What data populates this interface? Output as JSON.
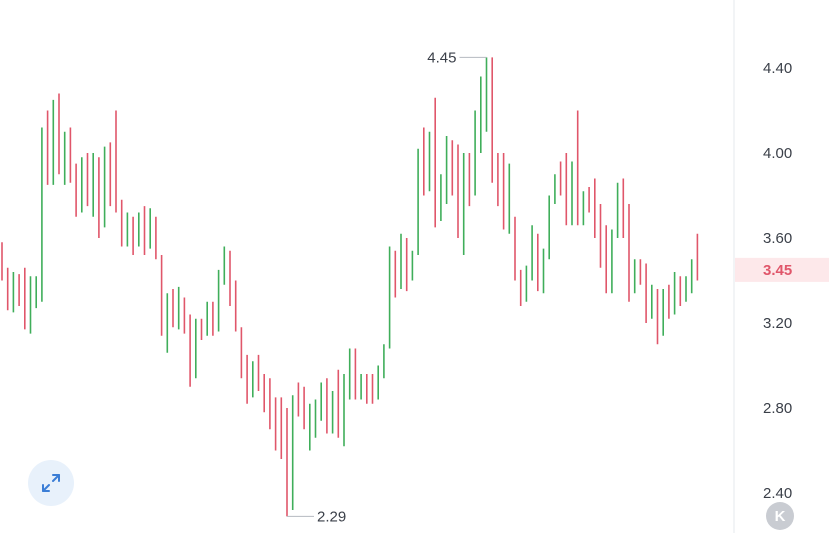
{
  "chart_data": {
    "type": "ohlc",
    "title": "",
    "xlabel": "",
    "ylabel": "",
    "ylim": [
      2.29,
      4.51
    ],
    "yticks": [
      4.4,
      4.0,
      3.6,
      3.2,
      2.8,
      2.4
    ],
    "ytick_labels": [
      "4.40",
      "4.00",
      "3.60",
      "3.20",
      "2.80",
      "2.40"
    ],
    "high_marker": {
      "value": 4.45,
      "label": "4.45"
    },
    "low_marker": {
      "value": 2.29,
      "label": "2.29"
    },
    "last_price": {
      "value": 3.45,
      "label": "3.45"
    },
    "grid": false,
    "up_color": "#3fae5a",
    "down_color": "#e0566a",
    "bars": [
      [
        3.58,
        3.58,
        3.4,
        3.4
      ],
      [
        3.4,
        3.46,
        3.26,
        3.3
      ],
      [
        3.3,
        3.44,
        3.25,
        3.4
      ],
      [
        3.4,
        3.43,
        3.28,
        3.3
      ],
      [
        3.3,
        3.46,
        3.17,
        3.22
      ],
      [
        3.22,
        3.42,
        3.15,
        3.4
      ],
      [
        3.3,
        3.42,
        3.27,
        3.38
      ],
      [
        3.3,
        4.12,
        3.3,
        4.1
      ],
      [
        4.1,
        4.2,
        3.85,
        3.88
      ],
      [
        3.88,
        4.25,
        3.85,
        4.22
      ],
      [
        4.22,
        4.28,
        3.9,
        3.92
      ],
      [
        3.92,
        4.1,
        3.85,
        4.0
      ],
      [
        4.0,
        4.12,
        3.86,
        3.88
      ],
      [
        3.88,
        3.95,
        3.7,
        3.72
      ],
      [
        3.72,
        3.98,
        3.72,
        3.95
      ],
      [
        3.95,
        4.0,
        3.75,
        3.78
      ],
      [
        3.78,
        4.0,
        3.7,
        3.9
      ],
      [
        3.9,
        3.98,
        3.6,
        3.65
      ],
      [
        3.65,
        4.03,
        3.65,
        4.0
      ],
      [
        4.0,
        4.05,
        3.75,
        3.78
      ],
      [
        3.78,
        4.2,
        3.72,
        3.75
      ],
      [
        3.75,
        3.78,
        3.56,
        3.6
      ],
      [
        3.6,
        3.72,
        3.56,
        3.7
      ],
      [
        3.7,
        3.7,
        3.52,
        3.56
      ],
      [
        3.56,
        3.72,
        3.56,
        3.68
      ],
      [
        3.68,
        3.75,
        3.52,
        3.55
      ],
      [
        3.55,
        3.74,
        3.55,
        3.7
      ],
      [
        3.7,
        3.7,
        3.5,
        3.52
      ],
      [
        3.52,
        3.52,
        3.14,
        3.18
      ],
      [
        3.18,
        3.34,
        3.06,
        3.32
      ],
      [
        3.32,
        3.36,
        3.18,
        3.2
      ],
      [
        3.2,
        3.37,
        3.17,
        3.25
      ],
      [
        3.25,
        3.32,
        3.15,
        3.16
      ],
      [
        3.16,
        3.24,
        2.9,
        2.94
      ],
      [
        2.94,
        3.22,
        2.94,
        3.2
      ],
      [
        3.2,
        3.22,
        3.12,
        3.14
      ],
      [
        3.14,
        3.3,
        3.14,
        3.28
      ],
      [
        3.28,
        3.3,
        3.14,
        3.16
      ],
      [
        3.16,
        3.45,
        3.16,
        3.42
      ],
      [
        3.42,
        3.56,
        3.38,
        3.54
      ],
      [
        3.54,
        3.54,
        3.28,
        3.3
      ],
      [
        3.3,
        3.4,
        3.16,
        3.18
      ],
      [
        3.18,
        3.18,
        2.94,
        2.98
      ],
      [
        2.98,
        3.05,
        2.82,
        2.85
      ],
      [
        2.85,
        3.02,
        2.85,
        2.98
      ],
      [
        2.98,
        3.05,
        2.88,
        2.9
      ],
      [
        2.9,
        2.96,
        2.78,
        2.82
      ],
      [
        2.82,
        2.94,
        2.7,
        2.75
      ],
      [
        2.75,
        2.85,
        2.6,
        2.64
      ],
      [
        2.64,
        2.85,
        2.56,
        2.6
      ],
      [
        2.6,
        2.8,
        2.29,
        2.32
      ],
      [
        2.32,
        2.86,
        2.32,
        2.84
      ],
      [
        2.84,
        2.92,
        2.76,
        2.78
      ],
      [
        2.78,
        2.9,
        2.7,
        2.72
      ],
      [
        2.72,
        2.82,
        2.6,
        2.78
      ],
      [
        2.78,
        2.84,
        2.66,
        2.8
      ],
      [
        2.8,
        2.92,
        2.74,
        2.9
      ],
      [
        2.9,
        2.94,
        2.68,
        2.72
      ],
      [
        2.72,
        2.88,
        2.68,
        2.84
      ],
      [
        2.84,
        2.98,
        2.66,
        2.7
      ],
      [
        2.7,
        2.96,
        2.62,
        2.94
      ],
      [
        2.94,
        3.08,
        2.84,
        3.06
      ],
      [
        3.06,
        3.08,
        2.84,
        2.86
      ],
      [
        2.86,
        2.96,
        2.84,
        2.94
      ],
      [
        2.94,
        2.96,
        2.82,
        2.88
      ],
      [
        2.88,
        2.96,
        2.82,
        2.84
      ],
      [
        2.84,
        3.0,
        2.84,
        2.96
      ],
      [
        2.96,
        3.1,
        2.94,
        3.08
      ],
      [
        3.08,
        3.56,
        3.08,
        3.54
      ],
      [
        3.54,
        3.54,
        3.32,
        3.36
      ],
      [
        3.36,
        3.62,
        3.36,
        3.6
      ],
      [
        3.6,
        3.6,
        3.35,
        3.4
      ],
      [
        3.4,
        3.54,
        3.4,
        3.52
      ],
      [
        3.52,
        4.02,
        3.52,
        4.0
      ],
      [
        4.0,
        4.12,
        3.8,
        3.82
      ],
      [
        3.82,
        4.1,
        3.82,
        4.08
      ],
      [
        4.08,
        4.26,
        3.65,
        3.68
      ],
      [
        3.68,
        3.9,
        3.68,
        3.86
      ],
      [
        3.86,
        4.08,
        3.76,
        4.06
      ],
      [
        4.06,
        4.06,
        3.8,
        3.84
      ],
      [
        3.84,
        4.04,
        3.6,
        3.62
      ],
      [
        3.62,
        4.0,
        3.52,
        3.96
      ],
      [
        3.96,
        4.0,
        3.75,
        3.8
      ],
      [
        3.8,
        4.2,
        3.8,
        4.18
      ],
      [
        4.18,
        4.36,
        4.0,
        4.3
      ],
      [
        4.3,
        4.45,
        4.1,
        4.42
      ],
      [
        4.42,
        4.45,
        3.86,
        3.9
      ],
      [
        3.9,
        4.0,
        3.75,
        3.78
      ],
      [
        3.78,
        4.0,
        3.64,
        3.68
      ],
      [
        3.68,
        3.95,
        3.62,
        3.7
      ],
      [
        3.7,
        3.7,
        3.4,
        3.45
      ],
      [
        3.45,
        3.45,
        3.28,
        3.3
      ],
      [
        3.3,
        3.47,
        3.3,
        3.44
      ],
      [
        3.44,
        3.66,
        3.4,
        3.62
      ],
      [
        3.62,
        3.62,
        3.35,
        3.38
      ],
      [
        3.38,
        3.55,
        3.34,
        3.5
      ],
      [
        3.5,
        3.8,
        3.5,
        3.76
      ],
      [
        3.76,
        3.9,
        3.76,
        3.86
      ],
      [
        3.86,
        3.96,
        3.8,
        3.84
      ],
      [
        3.84,
        4.0,
        3.66,
        3.7
      ],
      [
        3.7,
        3.96,
        3.66,
        3.94
      ],
      [
        3.94,
        4.2,
        3.66,
        3.68
      ],
      [
        3.68,
        3.82,
        3.66,
        3.8
      ],
      [
        3.8,
        3.84,
        3.72,
        3.76
      ],
      [
        3.76,
        3.88,
        3.6,
        3.64
      ],
      [
        3.64,
        3.76,
        3.46,
        3.5
      ],
      [
        3.5,
        3.66,
        3.34,
        3.38
      ],
      [
        3.38,
        3.64,
        3.34,
        3.62
      ],
      [
        3.62,
        3.86,
        3.6,
        3.84
      ],
      [
        3.84,
        3.88,
        3.6,
        3.64
      ],
      [
        3.64,
        3.76,
        3.3,
        3.34
      ],
      [
        3.34,
        3.5,
        3.34,
        3.46
      ],
      [
        3.46,
        3.5,
        3.38,
        3.42
      ],
      [
        3.42,
        3.48,
        3.2,
        3.24
      ],
      [
        3.24,
        3.38,
        3.22,
        3.34
      ],
      [
        3.34,
        3.36,
        3.1,
        3.14
      ],
      [
        3.14,
        3.36,
        3.14,
        3.3
      ],
      [
        3.3,
        3.38,
        3.22,
        3.24
      ],
      [
        3.24,
        3.44,
        3.24,
        3.42
      ],
      [
        3.42,
        3.42,
        3.28,
        3.32
      ],
      [
        3.32,
        3.42,
        3.3,
        3.4
      ],
      [
        3.4,
        3.5,
        3.34,
        3.46
      ],
      [
        3.46,
        3.62,
        3.4,
        3.45
      ]
    ]
  },
  "controls": {
    "expand_icon": "expand-arrows-icon",
    "reset_label": "K"
  }
}
